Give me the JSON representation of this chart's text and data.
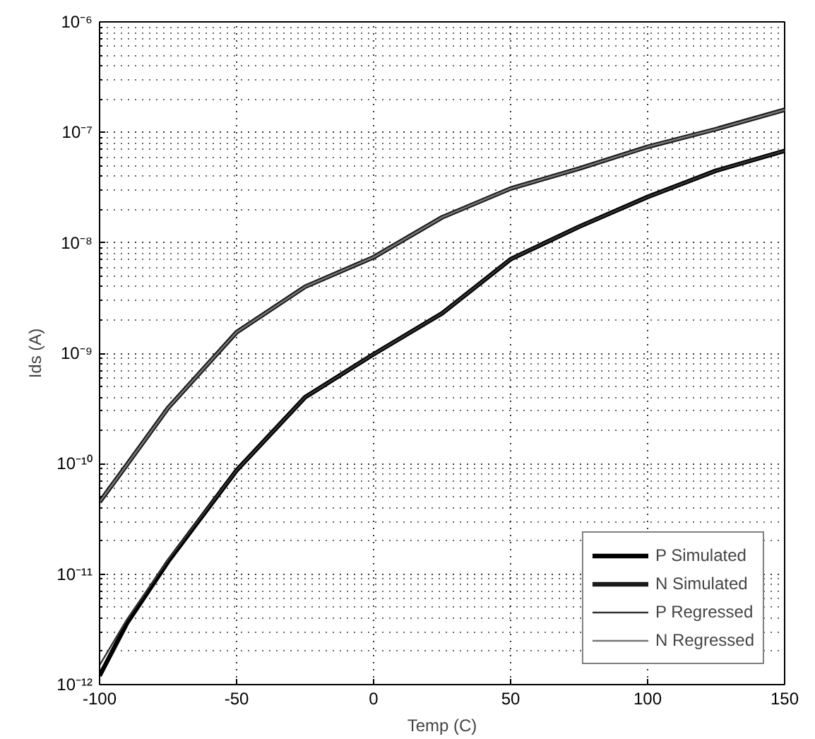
{
  "chart_data": {
    "type": "line",
    "xlabel": "Temp (C)",
    "ylabel": "Ids (A)",
    "x": [
      -100,
      -90,
      -75,
      -50,
      -25,
      0,
      25,
      50,
      75,
      100,
      125,
      150
    ],
    "series": [
      {
        "name": "P Simulated",
        "color": "#000000",
        "values": [
          1.2e-12,
          3.6e-12,
          1.3e-11,
          8.7e-11,
          4e-10,
          9.8e-10,
          2.3e-09,
          7.1e-09,
          1.4e-08,
          2.6e-08,
          4.5e-08,
          6.8e-08
        ]
      },
      {
        "name": "N Simulated",
        "color": "#1a1a1a",
        "values": [
          4.5e-11,
          9.8e-11,
          3.2e-10,
          1.55e-09,
          4e-09,
          7.4e-09,
          1.7e-08,
          3.1e-08,
          4.7e-08,
          7.4e-08,
          1.07e-07,
          1.6e-07
        ]
      },
      {
        "name": "P Regressed",
        "color": "#333333",
        "values": [
          1.5e-12,
          3.9e-12,
          1.35e-11,
          8.7e-11,
          4e-10,
          9.8e-10,
          2.3e-09,
          7.1e-09,
          1.4e-08,
          2.6e-08,
          4.5e-08,
          6.8e-08
        ]
      },
      {
        "name": "N Regressed",
        "color": "#777777",
        "values": [
          4.5e-11,
          9.8e-11,
          3.2e-10,
          1.55e-09,
          4e-09,
          7.4e-09,
          1.7e-08,
          3.1e-08,
          4.7e-08,
          7.4e-08,
          1.07e-07,
          1.6e-07
        ]
      }
    ],
    "xlim": [
      -100,
      150
    ],
    "xticks": [
      -100,
      -50,
      0,
      50,
      100,
      150
    ],
    "ylim": [
      1e-12,
      1e-06
    ],
    "yticks": [
      {
        "value": 1e-12,
        "label": "10⁻¹²"
      },
      {
        "value": 1e-11,
        "label": "10⁻¹¹"
      },
      {
        "value": 1e-10,
        "label": "10⁻¹⁰"
      },
      {
        "value": 1e-09,
        "label": "10⁻⁹"
      },
      {
        "value": 1e-08,
        "label": "10⁻⁸"
      },
      {
        "value": 1e-07,
        "label": "10⁻⁷"
      },
      {
        "value": 1e-06,
        "label": "10⁻⁶"
      }
    ],
    "log": "y",
    "grid": true,
    "legend": "bottom right",
    "line_style": "solid",
    "marker": "none"
  }
}
